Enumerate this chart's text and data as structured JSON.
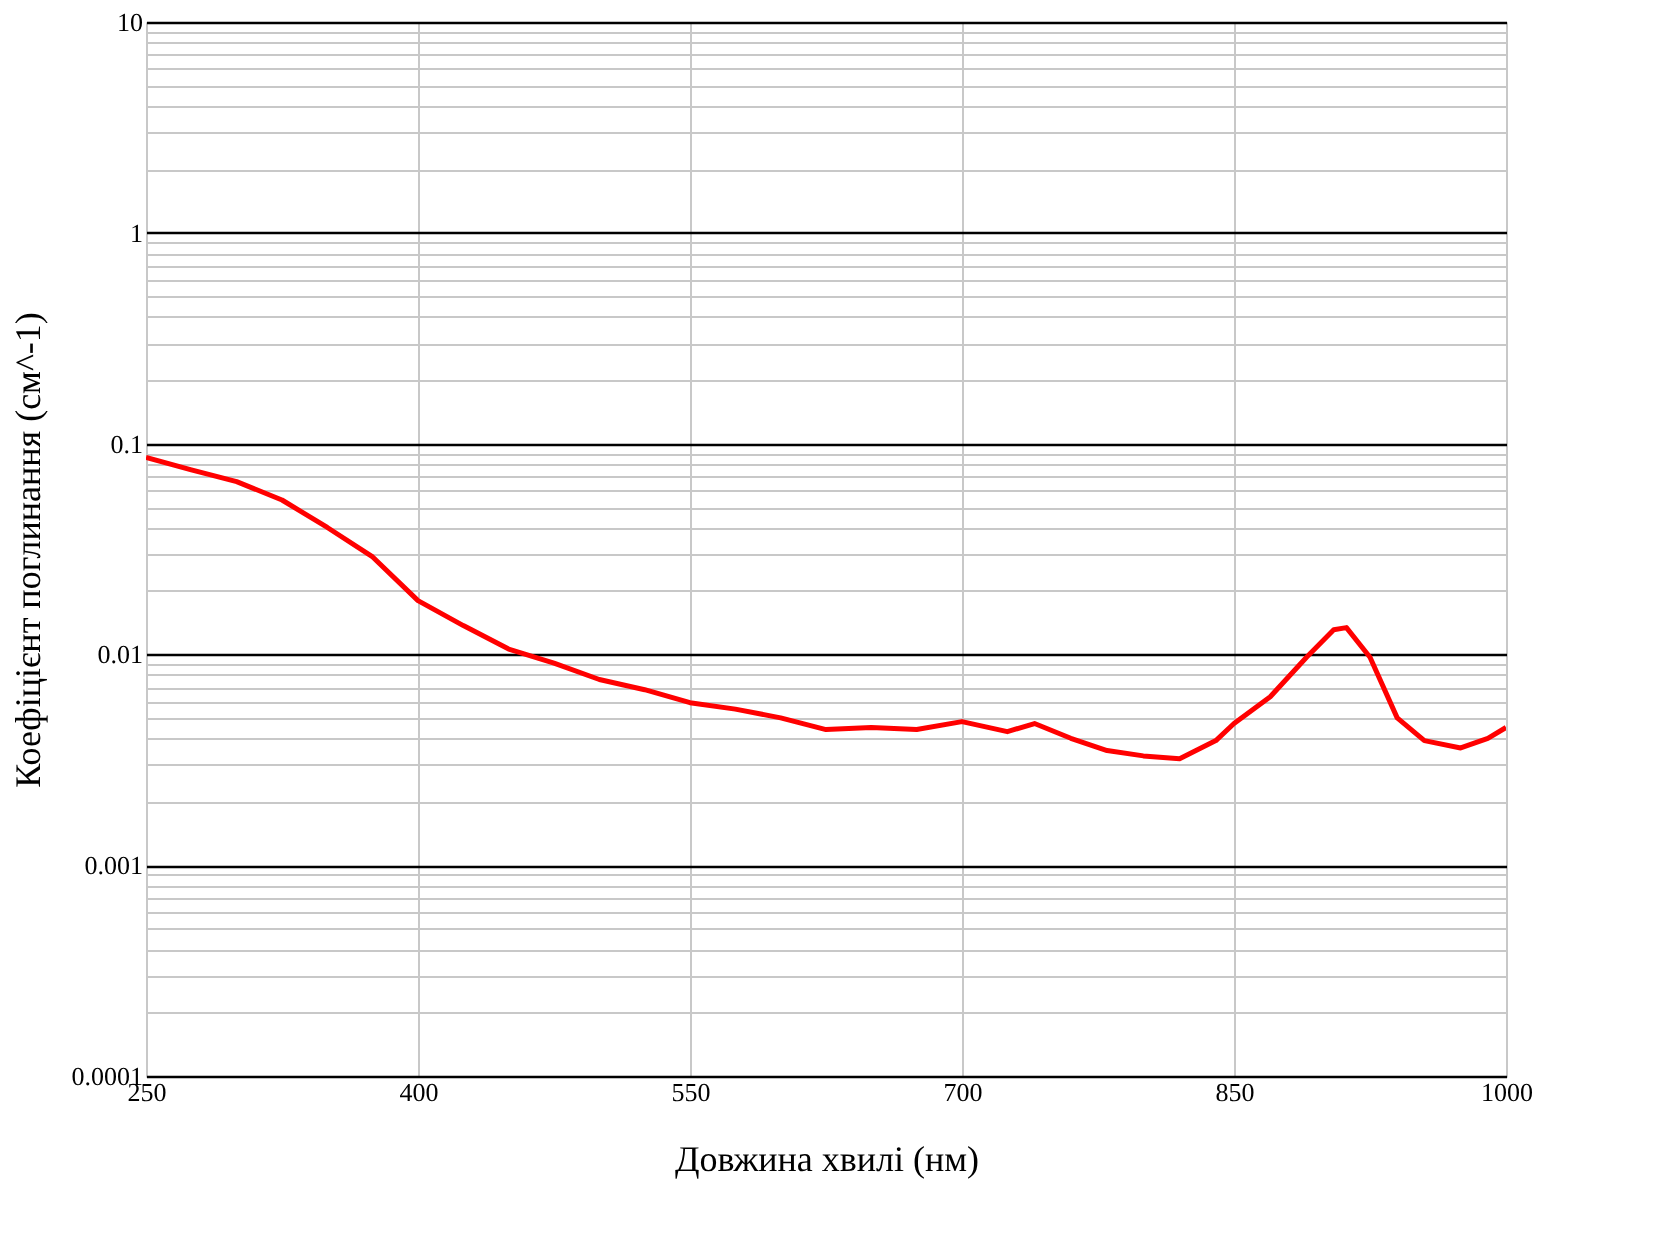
{
  "chart_data": {
    "type": "line",
    "xlabel": "Довжина хвилі (нм)",
    "ylabel": "Коефіцієнт поглинання (см^-1)",
    "x": [
      250,
      275,
      300,
      325,
      350,
      375,
      400,
      425,
      450,
      475,
      500,
      525,
      550,
      575,
      600,
      625,
      650,
      675,
      700,
      725,
      740,
      760,
      780,
      800,
      820,
      840,
      850,
      870,
      890,
      905,
      912,
      925,
      940,
      955,
      975,
      990,
      1000
    ],
    "series": [
      {
        "color": "#ff0000",
        "values": [
          0.086,
          0.075,
          0.066,
          0.054,
          0.04,
          0.029,
          0.018,
          0.0137,
          0.0106,
          0.0091,
          0.0076,
          0.0068,
          0.0059,
          0.0055,
          0.005,
          0.0044,
          0.0045,
          0.0044,
          0.0048,
          0.0043,
          0.0047,
          0.004,
          0.0035,
          0.0033,
          0.0032,
          0.0039,
          0.0047,
          0.0063,
          0.0097,
          0.0131,
          0.0134,
          0.0097,
          0.005,
          0.0039,
          0.0036,
          0.004,
          0.0045
        ]
      }
    ],
    "log": "y",
    "xlim": [
      250,
      1000
    ],
    "xticks": [
      250,
      400,
      550,
      700,
      850,
      1000
    ],
    "ylim": [
      0.0001,
      10
    ],
    "yticks": [
      0.0001,
      {
        "value": 0.0002,
        "label": null
      },
      {
        "value": 0.0003,
        "label": null
      },
      {
        "value": 0.0004,
        "label": null
      },
      {
        "value": 0.0005,
        "label": null
      },
      {
        "value": 0.0006,
        "label": null
      },
      {
        "value": 0.0007,
        "label": null
      },
      {
        "value": 0.0008,
        "label": null
      },
      {
        "value": 0.0009,
        "label": null
      },
      0.001,
      {
        "value": 0.002,
        "label": null
      },
      {
        "value": 0.003,
        "label": null
      },
      {
        "value": 0.004,
        "label": null
      },
      {
        "value": 0.005,
        "label": null
      },
      {
        "value": 0.006,
        "label": null
      },
      {
        "value": 0.007,
        "label": null
      },
      {
        "value": 0.008,
        "label": null
      },
      {
        "value": 0.009,
        "label": null
      },
      0.01,
      {
        "value": 0.02,
        "label": null
      },
      {
        "value": 0.03,
        "label": null
      },
      {
        "value": 0.04,
        "label": null
      },
      {
        "value": 0.05,
        "label": null
      },
      {
        "value": 0.06,
        "label": null
      },
      {
        "value": 0.07,
        "label": null
      },
      {
        "value": 0.08,
        "label": null
      },
      {
        "value": 0.09,
        "label": null
      },
      0.1,
      {
        "value": 0.2,
        "label": null
      },
      {
        "value": 0.3,
        "label": null
      },
      {
        "value": 0.4,
        "label": null
      },
      {
        "value": 0.5,
        "label": null
      },
      {
        "value": 0.6,
        "label": null
      },
      {
        "value": 0.7,
        "label": null
      },
      {
        "value": 0.8,
        "label": null
      },
      {
        "value": 0.9,
        "label": null
      },
      1,
      {
        "value": 2,
        "label": null
      },
      {
        "value": 3,
        "label": null
      },
      {
        "value": 4,
        "label": null
      },
      {
        "value": 5,
        "label": null
      },
      {
        "value": 6,
        "label": null
      },
      {
        "value": 7,
        "label": null
      },
      {
        "value": 8,
        "label": null
      },
      {
        "value": 9,
        "label": null
      },
      10
    ],
    "grid": true,
    "marker": "none",
    "line_style": "solid"
  }
}
